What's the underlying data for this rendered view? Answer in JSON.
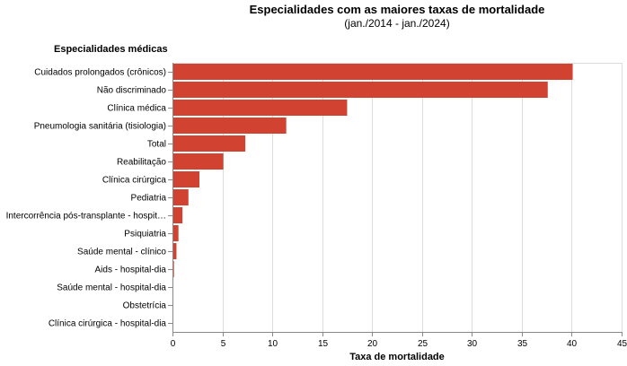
{
  "chart_data": {
    "type": "bar",
    "orientation": "horizontal",
    "title": "Especialidades com as maiores taxas de mortalidade",
    "subtitle": "(jan./2014 - jan./2024)",
    "ylabel": "Especialidades médicas",
    "xlabel": "Taxa de mortalidade",
    "xlim": [
      0,
      45
    ],
    "xticks": [
      0,
      5,
      10,
      15,
      20,
      25,
      30,
      35,
      40,
      45
    ],
    "grid": true,
    "bar_color": "#d14230",
    "categories": [
      "Cuidados prolongados (crônicos)",
      "Não discriminado",
      "Clínica médica",
      "Pneumologia sanitária (tisiologia)",
      "Total",
      "Reabilitação",
      "Clínica cirúrgica",
      "Pediatria",
      "Intercorrência pós-transplante - hospit…",
      "Psiquiatria",
      "Saúde mental - clínico",
      "Aids - hospital-dia",
      "Saúde mental - hospital-dia",
      "Obstetrícia",
      "Clínica cirúrgica - hospital-dia"
    ],
    "values": [
      40.1,
      37.6,
      17.5,
      11.4,
      7.3,
      5.1,
      2.7,
      1.6,
      1.0,
      0.6,
      0.4,
      0.15,
      0.05,
      0.02,
      0.01
    ]
  }
}
